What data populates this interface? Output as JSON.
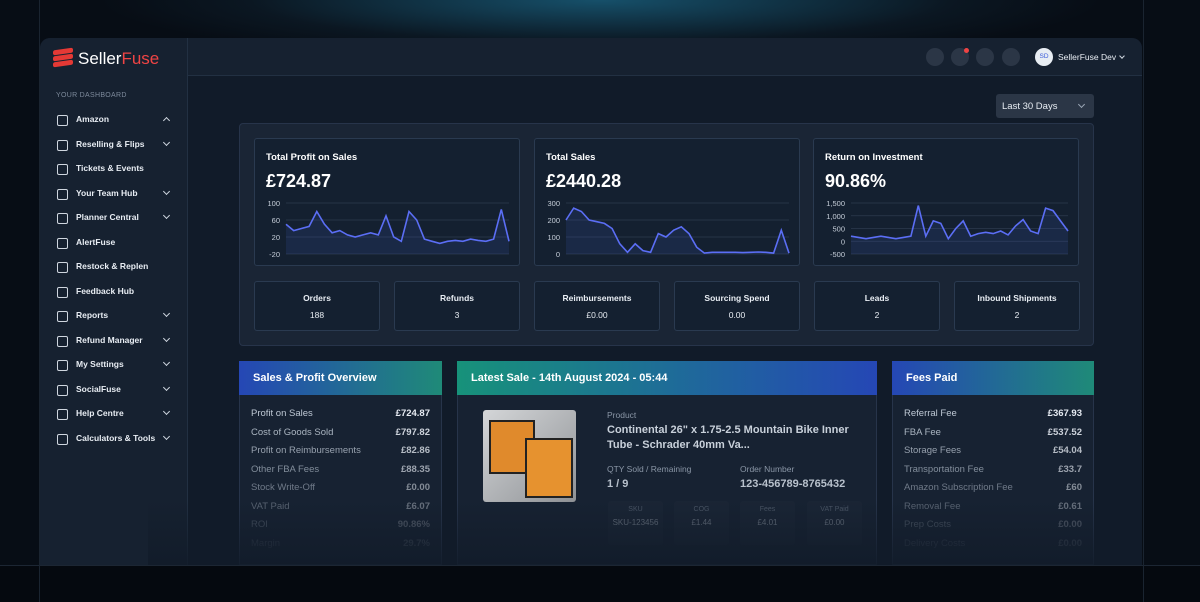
{
  "brand": {
    "first": "Seller",
    "second": "Fuse"
  },
  "sidebar": {
    "heading": "YOUR DASHBOARD",
    "items": [
      "Amazon",
      "Reselling & Flips",
      "Tickets & Events",
      "Your Team Hub",
      "Planner Central",
      "AlertFuse",
      "Restock & Replen",
      "Feedback Hub",
      "Reports",
      "Refund Manager",
      "My Settings",
      "SocialFuse",
      "Help Centre",
      "Calculators & Tools"
    ]
  },
  "topbar": {
    "avatar": "SD",
    "user": "SellerFuse Dev"
  },
  "range": "Last 30 Days",
  "kpis": [
    {
      "title": "Total Profit on Sales",
      "value": "£724.87",
      "chart": {
        "type": "line",
        "ylim": [
          -20,
          100
        ],
        "yticks": [
          -20,
          20,
          60,
          100
        ],
        "values": [
          50,
          35,
          40,
          45,
          80,
          50,
          30,
          35,
          25,
          20,
          25,
          30,
          25,
          70,
          20,
          10,
          80,
          60,
          15,
          10,
          5,
          10,
          12,
          10,
          15,
          12,
          10,
          15,
          85,
          10
        ]
      }
    },
    {
      "title": "Total Sales",
      "value": "£2440.28",
      "chart": {
        "type": "line",
        "ylim": [
          0,
          300
        ],
        "yticks": [
          0,
          100,
          200,
          300
        ],
        "values": [
          200,
          270,
          250,
          200,
          190,
          180,
          150,
          60,
          10,
          60,
          20,
          10,
          120,
          100,
          140,
          160,
          120,
          40,
          5,
          10,
          10,
          10,
          10,
          8,
          10,
          12,
          10,
          5,
          140,
          5
        ]
      }
    },
    {
      "title": "Return on Investment",
      "value": "90.86%",
      "chart": {
        "type": "line",
        "ylim": [
          -500,
          1500
        ],
        "yticks": [
          -500,
          0,
          500,
          {
            "value": 1000,
            "label": "1,000"
          },
          {
            "value": 1500,
            "label": "1,500"
          }
        ],
        "values": [
          200,
          150,
          100,
          150,
          200,
          150,
          100,
          150,
          200,
          1400,
          200,
          800,
          700,
          100,
          500,
          800,
          200,
          300,
          350,
          300,
          400,
          250,
          600,
          850,
          400,
          300,
          1300,
          1200,
          800,
          400
        ]
      }
    }
  ],
  "stats": [
    {
      "label": "Orders",
      "value": "188"
    },
    {
      "label": "Refunds",
      "value": "3"
    },
    {
      "label": "Reimbursements",
      "value": "£0.00"
    },
    {
      "label": "Sourcing Spend",
      "value": "0.00"
    },
    {
      "label": "Leads",
      "value": "2"
    },
    {
      "label": "Inbound Shipments",
      "value": "2"
    }
  ],
  "overview": {
    "title": "Sales & Profit Overview",
    "rows": [
      [
        "Profit on Sales",
        "£724.87"
      ],
      [
        "Cost of Goods Sold",
        "£797.82"
      ],
      [
        "Profit on Reimbursements",
        "£82.86"
      ],
      [
        "Other FBA Fees",
        "£88.35"
      ],
      [
        "Stock Write-Off",
        "£0.00"
      ],
      [
        "VAT Paid",
        "£6.07"
      ],
      [
        "ROI",
        "90.86%"
      ],
      [
        "Margin",
        "29.7%"
      ]
    ]
  },
  "latest_sale": {
    "title": "Latest Sale - 14th August 2024 - 05:44",
    "product_label": "Product",
    "product": "Continental 26\" x 1.75-2.5 Mountain Bike Inner Tube - Schrader 40mm Va...",
    "qty_label": "QTY Sold / Remaining",
    "qty": "1 / 9",
    "order_label": "Order Number",
    "order": "123-456789-8765432",
    "details": [
      [
        "SKU",
        "SKU-123456"
      ],
      [
        "COG",
        "£1.44"
      ],
      [
        "Fees",
        "£4.01"
      ],
      [
        "VAT Paid",
        "£0.00"
      ]
    ]
  },
  "fees": {
    "title": "Fees Paid",
    "rows": [
      [
        "Referral Fee",
        "£367.93"
      ],
      [
        "FBA Fee",
        "£537.52"
      ],
      [
        "Storage Fees",
        "£54.04"
      ],
      [
        "Transportation Fee",
        "£33.7"
      ],
      [
        "Amazon Subscription Fee",
        "£60"
      ],
      [
        "Removal Fee",
        "£0.61"
      ],
      [
        "Prep Costs",
        "£0.00"
      ],
      [
        "Delivery Costs",
        "£0.00"
      ]
    ]
  }
}
